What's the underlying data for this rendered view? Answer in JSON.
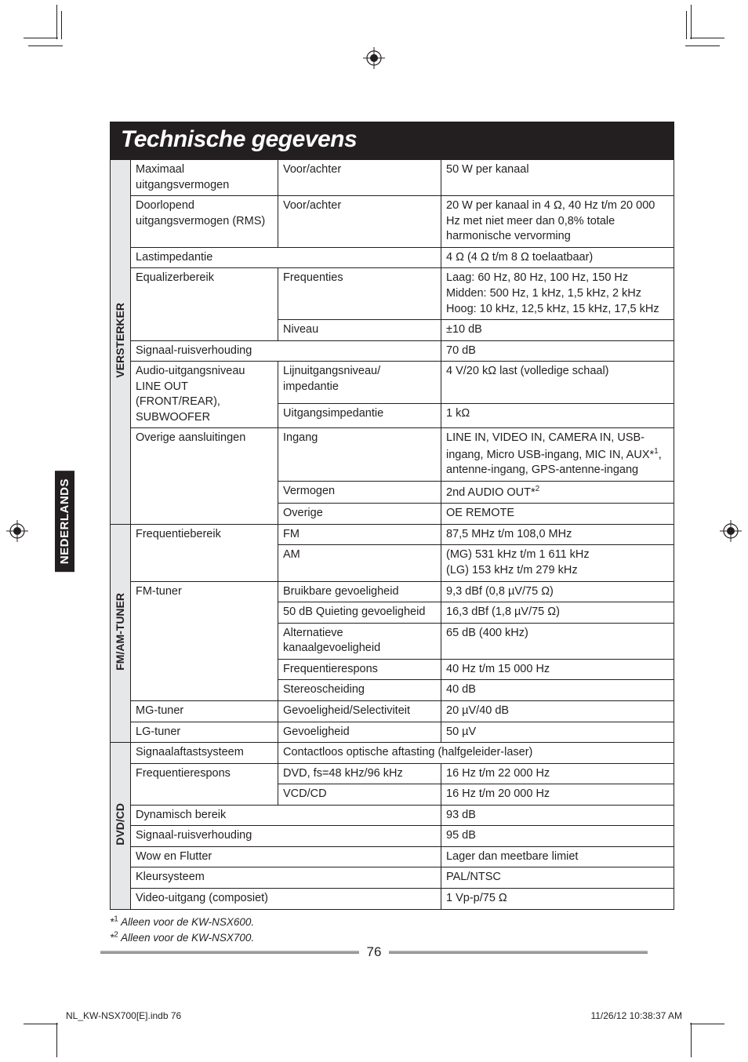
{
  "page": {
    "title": "Technische gegevens",
    "side_tab": "NEDERLANDS",
    "page_number": "76",
    "footer_left": "NL_KW-NSX700[E].indb   76",
    "footer_right": "11/26/12   10:38:37 AM"
  },
  "footnotes": {
    "f1": "*1   Alleen voor de KW-NSX600.",
    "f2": "*2   Alleen voor de KW-NSX700."
  },
  "sections": {
    "versterker": {
      "header": "VERSTERKER",
      "rows": {
        "r1": {
          "a": "Maximaal uitgangsvermogen",
          "b": "Voor/achter",
          "c": "50 W per kanaal"
        },
        "r2": {
          "a": "Doorlopend uitgangsvermogen (RMS)",
          "b": "Voor/achter",
          "c": "20 W per kanaal in 4 Ω, 40 Hz t/m 20 000 Hz met niet meer dan 0,8% totale harmonische vervorming"
        },
        "r3": {
          "a": "Lastimpedantie",
          "c": "4 Ω (4 Ω t/m 8 Ω toelaatbaar)"
        },
        "r4": {
          "a": "Equalizerbereik",
          "b": "Frequenties",
          "c": "Laag: 60 Hz, 80 Hz, 100 Hz, 150 Hz\nMidden: 500 Hz, 1 kHz, 1,5 kHz, 2 kHz\nHoog: 10 kHz, 12,5 kHz, 15 kHz, 17,5 kHz"
        },
        "r5": {
          "b": "Niveau",
          "c": "±10 dB"
        },
        "r6": {
          "a": "Signaal-ruisverhouding",
          "c": "70 dB"
        },
        "r7": {
          "a": "Audio-uitgangsniveau\nLINE OUT (FRONT/REAR), SUBWOOFER",
          "b": "Lijnuitgangsniveau/\nimpedantie",
          "c": "4 V/20 kΩ last (volledige schaal)"
        },
        "r8": {
          "b": "Uitgangsimpedantie",
          "c": "1 kΩ"
        },
        "r9": {
          "a": "Overige aansluitingen",
          "b": "Ingang",
          "c": "LINE IN, VIDEO IN, CAMERA IN, USB-ingang, Micro USB-ingang, MIC IN, AUX*1, antenne-ingang, GPS-antenne-ingang"
        },
        "r10": {
          "b": "Vermogen",
          "c": "2nd AUDIO OUT*2"
        },
        "r11": {
          "b": "Overige",
          "c": "OE REMOTE"
        }
      }
    },
    "fmam": {
      "header": "FM/AM-TUNER",
      "rows": {
        "r1": {
          "a": "Frequentiebereik",
          "b": "FM",
          "c": "87,5 MHz t/m 108,0 MHz"
        },
        "r2": {
          "b": "AM",
          "c": "(MG) 531 kHz t/m 1 611 kHz\n(LG) 153 kHz t/m 279 kHz"
        },
        "r3": {
          "a": "FM-tuner",
          "b": "Bruikbare gevoeligheid",
          "c": "9,3 dBf (0,8 µV/75 Ω)"
        },
        "r4": {
          "b": "50 dB Quieting gevoeligheid",
          "c": "16,3 dBf (1,8 µV/75 Ω)"
        },
        "r5": {
          "b": "Alternatieve kanaalgevoeligheid",
          "c": "65 dB (400 kHz)"
        },
        "r6": {
          "b": "Frequentierespons",
          "c": "40 Hz t/m 15 000 Hz"
        },
        "r7": {
          "b": "Stereoscheiding",
          "c": "40 dB"
        },
        "r8": {
          "a": "MG-tuner",
          "b": "Gevoeligheid/Selectiviteit",
          "c": "20 µV/40 dB"
        },
        "r9": {
          "a": "LG-tuner",
          "b": "Gevoeligheid",
          "c": "50 µV"
        }
      }
    },
    "dvdcd": {
      "header": "DVD/CD",
      "rows": {
        "r1": {
          "a": "Signaalaftastsysteem",
          "b": "Contactloos optische aftasting (halfgeleider-laser)"
        },
        "r2": {
          "a": "Frequentierespons",
          "b": "DVD, fs=48 kHz/96 kHz",
          "c": "16 Hz t/m 22 000 Hz"
        },
        "r3": {
          "b": "VCD/CD",
          "c": "16 Hz t/m 20 000 Hz"
        },
        "r4": {
          "a": "Dynamisch bereik",
          "c": "93 dB"
        },
        "r5": {
          "a": "Signaal-ruisverhouding",
          "c": "95 dB"
        },
        "r6": {
          "a": "Wow en Flutter",
          "c": "Lager dan meetbare limiet"
        },
        "r7": {
          "a": "Kleursysteem",
          "c": "PAL/NTSC"
        },
        "r8": {
          "a": "Video-uitgang (composiet)",
          "c": "1 Vp-p/75 Ω"
        }
      }
    }
  }
}
